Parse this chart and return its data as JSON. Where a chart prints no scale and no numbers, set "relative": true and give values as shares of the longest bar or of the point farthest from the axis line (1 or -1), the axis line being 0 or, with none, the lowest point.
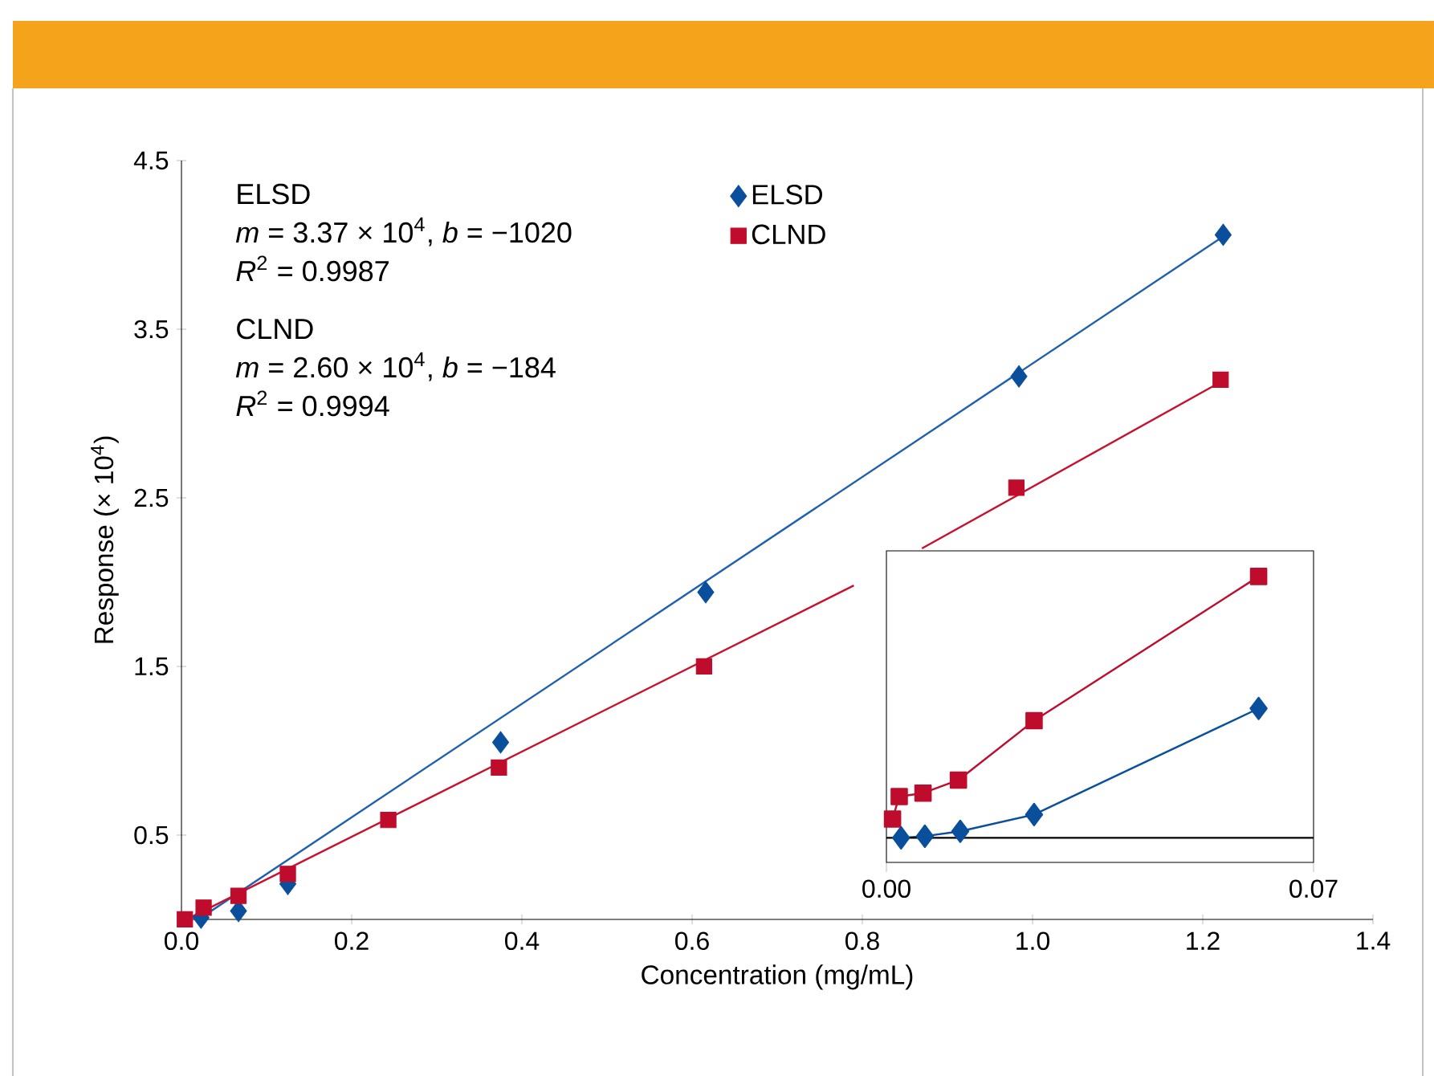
{
  "chart_data": [
    {
      "type": "scatter",
      "xlabel": "Concentration (mg/mL)",
      "ylabel": "Response (× 10$^{4}$)",
      "xlim": [
        0,
        1.4
      ],
      "ylim": [
        0,
        4.5
      ],
      "xticks": [
        {
          "value": 0,
          "label": "0.0"
        },
        {
          "value": 0.2,
          "label": "0.2"
        },
        {
          "value": 0.4,
          "label": "0.4"
        },
        {
          "value": 0.6,
          "label": "0.6"
        },
        {
          "value": 0.8,
          "label": "0.8"
        },
        {
          "value": 1.0,
          "label": "1.0"
        },
        {
          "value": 1.2,
          "label": "1.2"
        },
        {
          "value": 1.4,
          "label": "1.4"
        }
      ],
      "yticks": [
        0.5,
        1.5,
        2.5,
        3.5,
        4.5
      ],
      "legend": "top",
      "annotations": [
        "ELSD",
        "*m* = 3.37 × 10$^{4}$, *b* = −1020",
        "*R*$^{2}$ = 0.9987",
        "CLND",
        "*m* = 2.60 × 10$^{4}$, *b* = −184",
        "*R*$^{2}$ = 0.9994"
      ],
      "series": [
        {
          "type": "line",
          "color": "#1f5fae",
          "x": [
            0.02,
            1.224
          ],
          "values": [
            0.0,
            4.05
          ]
        },
        {
          "type": "line",
          "color": "#c8102e",
          "x": [
            0.01,
            0.79,
            0.83,
            0.87,
            1.215
          ],
          "values": [
            0.01,
            1.98,
            null,
            2.2,
            3.17
          ]
        },
        {
          "name": "ELSD",
          "color": "#0a4f9c",
          "marker": "diamond",
          "x": [
            0.023,
            0.067,
            0.125,
            0.375,
            0.616,
            0.984,
            1.224
          ],
          "values": [
            0.01,
            0.05,
            0.21,
            1.05,
            1.94,
            3.22,
            4.06
          ]
        },
        {
          "name": "CLND",
          "color": "#c00c2c",
          "marker": "square",
          "x": [
            0.004,
            0.026,
            0.067,
            0.125,
            0.243,
            0.373,
            0.614,
            0.981,
            1.221
          ],
          "values": [
            0.0,
            0.07,
            0.14,
            0.27,
            0.59,
            0.9,
            1.5,
            2.56,
            3.2
          ]
        }
      ]
    },
    {
      "type": "line",
      "relative": true,
      "xlim": [
        0,
        0.07
      ],
      "xticks": [
        {
          "value": 0,
          "label": "0.00"
        },
        {
          "value": 0.07,
          "label": "0.07"
        }
      ],
      "tick_labels": "x",
      "ref_lines": [
        {
          "axis": "y",
          "value": 0
        }
      ],
      "series": [
        {
          "color": "#0a4f9c",
          "marker": "diamond",
          "x": [
            0.0024,
            0.0063,
            0.0121,
            0.0242,
            0.061
          ],
          "values": [
            0.0,
            0.006,
            0.025,
            0.089,
            0.495
          ]
        },
        {
          "color": "#c00c2c",
          "marker": "square",
          "x": [
            0.001,
            0.0021,
            0.006,
            0.0118,
            0.0242,
            0.061
          ],
          "values": [
            0.072,
            0.158,
            0.171,
            0.221,
            0.448,
            1.0
          ]
        }
      ]
    }
  ]
}
